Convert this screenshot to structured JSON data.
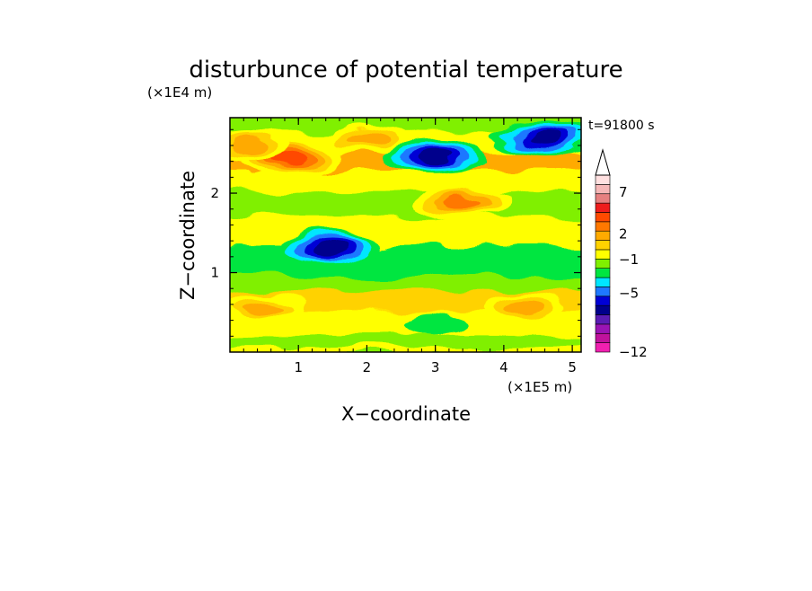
{
  "chart_data": {
    "type": "heatmap",
    "title": "disturbunce of potential temperature",
    "xlabel": "X−coordinate",
    "ylabel": "Z−coordinate",
    "x_unit": "(×1E5 m)",
    "y_unit": "(×1E4 m)",
    "time_label": "t=91800 s",
    "xlim": [
      0,
      5.13
    ],
    "ylim": [
      0,
      2.95
    ],
    "x_ticks": [
      {
        "value": 1,
        "label": "1"
      },
      {
        "value": 2,
        "label": "2"
      },
      {
        "value": 3,
        "label": "3"
      },
      {
        "value": 4,
        "label": "4"
      },
      {
        "value": 5,
        "label": "5"
      }
    ],
    "y_ticks": [
      {
        "value": 1,
        "label": "1"
      },
      {
        "value": 2,
        "label": "2"
      }
    ],
    "colorbar": {
      "colors": [
        "#f020b0",
        "#c0129c",
        "#9a14b4",
        "#5a1cb4",
        "#00008c",
        "#0000d6",
        "#1e78ff",
        "#00e6ff",
        "#00e640",
        "#80f000",
        "#ffff00",
        "#ffd200",
        "#ffaa00",
        "#ff7800",
        "#ff4a00",
        "#ee1d1d",
        "#e68080",
        "#f5b7b7",
        "#ffe0e0"
      ],
      "labels": [
        {
          "value": -12,
          "label": "−12"
        },
        {
          "value": -5,
          "label": "−5"
        },
        {
          "value": -1,
          "label": "−1"
        },
        {
          "value": 2,
          "label": "2"
        },
        {
          "value": 7,
          "label": "7"
        }
      ],
      "extend": "max"
    },
    "field": {
      "background_level": 0,
      "bands": [
        {
          "z": [
            0.0,
            0.1
          ],
          "value": 1
        },
        {
          "z": [
            0.1,
            0.25
          ],
          "value": 0
        },
        {
          "z": [
            0.25,
            0.55
          ],
          "value": 1
        },
        {
          "z": [
            0.55,
            0.8
          ],
          "value": 2
        },
        {
          "z": [
            0.8,
            1.0
          ],
          "value": 0
        },
        {
          "z": [
            1.0,
            1.1
          ],
          "value": -1
        },
        {
          "z": [
            1.1,
            1.35
          ],
          "value": -1
        },
        {
          "z": [
            1.35,
            1.5
          ],
          "value": 1
        },
        {
          "z": [
            1.5,
            1.75
          ],
          "value": 1
        },
        {
          "z": [
            1.75,
            2.05
          ],
          "value": 0
        },
        {
          "z": [
            2.05,
            2.3
          ],
          "value": 1
        },
        {
          "z": [
            2.3,
            2.55
          ],
          "value": 3
        },
        {
          "z": [
            2.55,
            2.8
          ],
          "value": 1
        },
        {
          "z": [
            2.8,
            2.95
          ],
          "value": 0
        }
      ],
      "features": [
        {
          "x": 0.9,
          "z": 2.45,
          "value": 5,
          "kind": "warm anomaly"
        },
        {
          "x": 0.3,
          "z": 2.6,
          "value": 3,
          "kind": "warm anomaly"
        },
        {
          "x": 2.0,
          "z": 2.7,
          "value": 3,
          "kind": "warm anomaly"
        },
        {
          "x": 3.0,
          "z": 2.45,
          "value": -5,
          "kind": "cold anomaly"
        },
        {
          "x": 4.6,
          "z": 2.7,
          "value": -5,
          "kind": "cold anomaly"
        },
        {
          "x": 3.4,
          "z": 1.9,
          "value": 4,
          "kind": "warm anomaly"
        },
        {
          "x": 1.45,
          "z": 1.3,
          "value": -5,
          "kind": "cold anomaly"
        },
        {
          "x": 0.5,
          "z": 0.55,
          "value": 3,
          "kind": "warm anomaly"
        },
        {
          "x": 4.3,
          "z": 0.55,
          "value": 3,
          "kind": "warm anomaly"
        },
        {
          "x": 3.0,
          "z": 0.35,
          "value": -1,
          "kind": "cold anomaly"
        }
      ]
    }
  }
}
